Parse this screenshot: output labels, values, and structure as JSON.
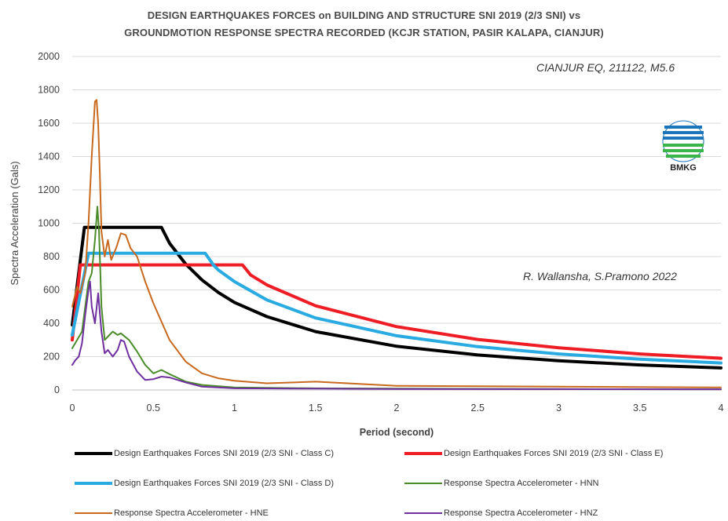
{
  "title_line1": "DESIGN EARTHQUAKES FORCES on BUILDING AND STRUCTURE SNI 2019 (2/3 SNI) vs",
  "title_line2": "GROUNDMOTION RESPONSE SPECTRA RECORDED (KCJR STATION, PASIR KALAPA, CIANJUR)",
  "annotation_event": "CIANJUR EQ, 211122, M5.6",
  "annotation_authors": "R. Wallansha, S.Pramono 2022",
  "logo_text": "BMKG",
  "chart_data": {
    "type": "line",
    "xlabel": "Period (second)",
    "ylabel": "Spectra Acceleration (Gals)",
    "xlim": [
      0,
      4
    ],
    "ylim": [
      0,
      2000
    ],
    "xticks": [
      "0",
      "0.5",
      "1",
      "1.5",
      "2",
      "2.5",
      "3",
      "3.5",
      "4"
    ],
    "yticks": [
      "0",
      "200",
      "400",
      "600",
      "800",
      "1000",
      "1200",
      "1400",
      "1600",
      "1800",
      "2000"
    ],
    "grid": "horizontal",
    "legend_position": "bottom",
    "series": [
      {
        "name": "Design Earthquakes Forces SNI 2019 (2/3 SNI - Class C)",
        "color": "#000000",
        "width": 4,
        "x": [
          0,
          0.075,
          0.55,
          0.6,
          0.7,
          0.8,
          0.9,
          1.0,
          1.2,
          1.5,
          2.0,
          2.5,
          3.0,
          3.5,
          4.0
        ],
        "y": [
          390,
          975,
          975,
          880,
          755,
          660,
          585,
          525,
          440,
          350,
          262,
          210,
          175,
          150,
          132
        ]
      },
      {
        "name": "Design Earthquakes Forces SNI 2019 (2/3 SNI - Class E)",
        "color": "#ee1c24",
        "width": 4,
        "x": [
          0,
          0.05,
          1.05,
          1.1,
          1.2,
          1.5,
          2.0,
          2.5,
          3.0,
          3.5,
          4.0
        ],
        "y": [
          300,
          750,
          750,
          690,
          630,
          505,
          380,
          303,
          253,
          216,
          190
        ]
      },
      {
        "name": "Design Earthquakes Forces SNI 2019 (2/3 SNI - Class D)",
        "color": "#29abe2",
        "width": 4,
        "x": [
          0,
          0.1,
          0.82,
          0.87,
          0.9,
          1.0,
          1.2,
          1.5,
          2.0,
          2.5,
          3.0,
          3.5,
          4.0
        ],
        "y": [
          330,
          820,
          820,
          750,
          720,
          650,
          540,
          432,
          325,
          260,
          216,
          185,
          162
        ]
      },
      {
        "name": "Response Spectra Accelerometer - HNN",
        "color": "#4a8c2a",
        "width": 2,
        "x": [
          0,
          0.03,
          0.06,
          0.08,
          0.1,
          0.12,
          0.14,
          0.155,
          0.165,
          0.18,
          0.2,
          0.22,
          0.25,
          0.28,
          0.3,
          0.35,
          0.4,
          0.45,
          0.5,
          0.55,
          0.6,
          0.7,
          0.8,
          1.0,
          1.5,
          2.0,
          3.0,
          4.0
        ],
        "y": [
          250,
          300,
          350,
          500,
          650,
          700,
          900,
          1100,
          950,
          500,
          300,
          320,
          350,
          330,
          340,
          300,
          230,
          150,
          100,
          120,
          95,
          50,
          30,
          15,
          10,
          8,
          5,
          4
        ]
      },
      {
        "name": "Response Spectra Accelerometer - HNE",
        "color": "#c8691e",
        "width": 2,
        "x": [
          0,
          0.03,
          0.05,
          0.08,
          0.1,
          0.12,
          0.14,
          0.15,
          0.16,
          0.17,
          0.18,
          0.2,
          0.22,
          0.24,
          0.27,
          0.3,
          0.33,
          0.36,
          0.4,
          0.45,
          0.5,
          0.6,
          0.7,
          0.8,
          0.9,
          1.0,
          1.2,
          1.5,
          2.0,
          3.0,
          4.0
        ],
        "y": [
          500,
          620,
          580,
          700,
          1000,
          1400,
          1730,
          1740,
          1600,
          1300,
          950,
          800,
          900,
          780,
          850,
          940,
          930,
          850,
          800,
          650,
          520,
          300,
          170,
          100,
          70,
          55,
          40,
          50,
          25,
          20,
          15
        ]
      },
      {
        "name": "Response Spectra Accelerometer - HNZ",
        "color": "#7030a0",
        "width": 2,
        "x": [
          0,
          0.02,
          0.04,
          0.06,
          0.08,
          0.1,
          0.11,
          0.12,
          0.14,
          0.16,
          0.18,
          0.2,
          0.22,
          0.25,
          0.28,
          0.3,
          0.32,
          0.35,
          0.4,
          0.45,
          0.5,
          0.55,
          0.6,
          0.7,
          0.8,
          1.0,
          1.5,
          2.0,
          3.0,
          4.0
        ],
        "y": [
          150,
          180,
          200,
          280,
          450,
          600,
          650,
          500,
          400,
          580,
          350,
          220,
          240,
          200,
          240,
          300,
          290,
          200,
          110,
          60,
          65,
          80,
          75,
          45,
          20,
          10,
          8,
          6,
          5,
          4
        ]
      }
    ]
  }
}
